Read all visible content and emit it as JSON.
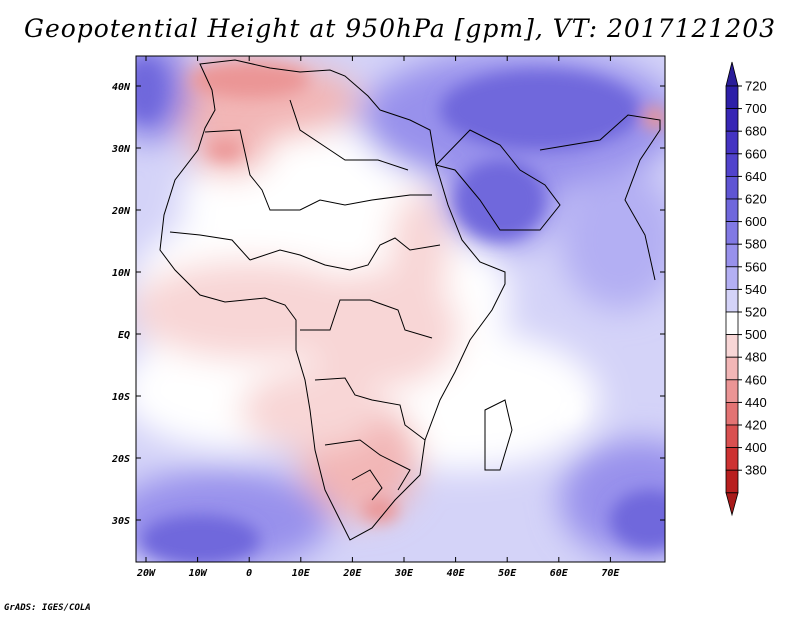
{
  "title": "Geopotential Height at 950hPa [gpm], VT: 2017121203",
  "credit": "GrADS: IGES/COLA",
  "map": {
    "lat_labels": [
      "40N",
      "30N",
      "20N",
      "10N",
      "EQ",
      "10S",
      "20S",
      "30S"
    ],
    "lon_labels": [
      "20W",
      "10W",
      "0",
      "10E",
      "20E",
      "30E",
      "40E",
      "50E",
      "60E",
      "70E"
    ],
    "field": "Geopotential Height",
    "level": "950hPa",
    "units": "gpm",
    "valid_time": "2017121203"
  },
  "colorbar": {
    "labels": [
      "720",
      "700",
      "680",
      "660",
      "640",
      "620",
      "600",
      "580",
      "560",
      "540",
      "520",
      "500",
      "480",
      "460",
      "440",
      "420",
      "400",
      "380"
    ],
    "colors": [
      "#2d1fa8",
      "#3726b5",
      "#4433c2",
      "#5143cc",
      "#5f55d4",
      "#6f67dc",
      "#8179e4",
      "#9891ec",
      "#b3aff3",
      "#d4d3f8",
      "#ffffff",
      "#f8d6d6",
      "#f2b6b6",
      "#eb9595",
      "#e37373",
      "#d95050",
      "#cd3232",
      "#b81f1f"
    ],
    "top_arrow_color": "#2a1d9a",
    "bottom_arrow_color": "#a81a1a"
  }
}
